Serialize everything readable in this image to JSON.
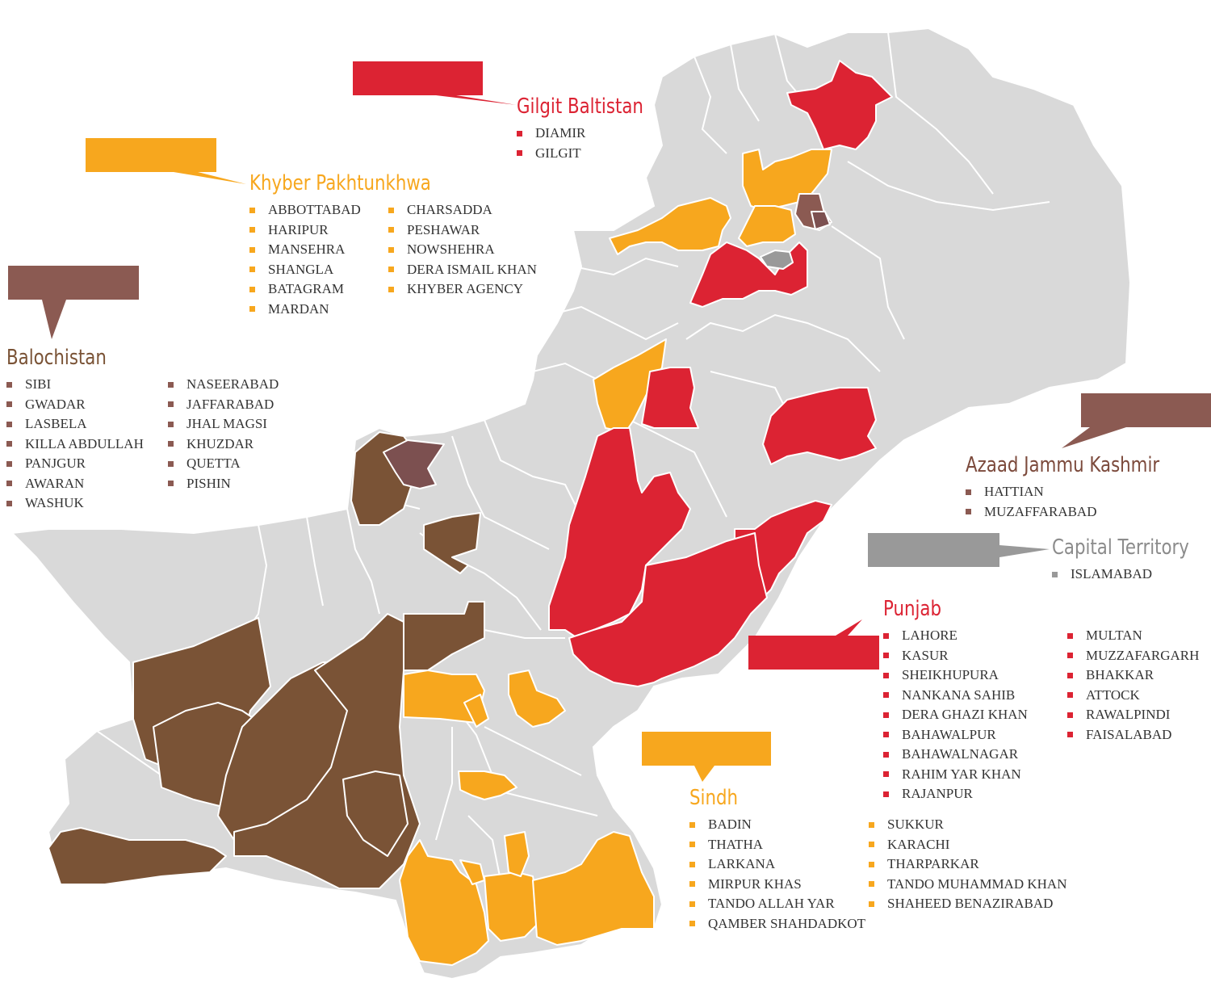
{
  "colors": {
    "default": "#d9d9d9",
    "gilgit_baltistan": "#dc2333",
    "khyber_pakhtunkhwa": "#f7a71e",
    "balochistan": "#7a5336",
    "balochistan_callout": "#8b5a52",
    "ajk": "#8b5a52",
    "capital": "#999999",
    "punjab": "#dc2333",
    "sindh": "#f7a71e"
  },
  "regions": {
    "gilgit_baltistan": {
      "title": "Gilgit Baltistan",
      "columns": [
        [
          "DIAMIR",
          "GILGIT"
        ]
      ]
    },
    "khyber_pakhtunkhwa": {
      "title": "Khyber Pakhtunkhwa",
      "columns": [
        [
          "ABBOTTABAD",
          "HARIPUR",
          "MANSEHRA",
          "SHANGLA",
          "BATAGRAM",
          "MARDAN"
        ],
        [
          "CHARSADDA",
          "PESHAWAR",
          "NOWSHEHRA",
          "DERA ISMAIL KHAN",
          "KHYBER AGENCY"
        ]
      ]
    },
    "balochistan": {
      "title": "Balochistan",
      "columns": [
        [
          "SIBI",
          "GWADAR",
          "LASBELA",
          "KILLA ABDULLAH",
          "PANJGUR",
          "AWARAN",
          "WASHUK"
        ],
        [
          "NASEERABAD",
          "JAFFARABAD",
          "JHAL MAGSI",
          "KHUZDAR",
          "QUETTA",
          "PISHIN"
        ]
      ]
    },
    "azaad_jammu_kashmir": {
      "title": "Azaad Jammu Kashmir",
      "columns": [
        [
          "HATTIAN",
          "MUZAFFARABAD"
        ]
      ]
    },
    "capital_territory": {
      "title": "Capital Territory",
      "columns": [
        [
          "ISLAMABAD"
        ]
      ]
    },
    "punjab": {
      "title": "Punjab",
      "columns": [
        [
          "LAHORE",
          "KASUR",
          "SHEIKHUPURA",
          "NANKANA SAHIB",
          "DERA GHAZI KHAN",
          "BAHAWALPUR",
          "BAHAWALNAGAR",
          "RAHIM YAR KHAN",
          "RAJANPUR"
        ],
        [
          "MULTAN",
          "MUZZAFARGARH",
          "BHAKKAR",
          "ATTOCK",
          "RAWALPINDI",
          "FAISALABAD"
        ]
      ]
    },
    "sindh": {
      "title": "Sindh",
      "columns": [
        [
          "BADIN",
          "THATHA",
          "LARKANA",
          "MIRPUR KHAS",
          "TANDO ALLAH YAR",
          "QAMBER SHAHDADKOT"
        ],
        [
          "SUKKUR",
          "KARACHI",
          "THARPARKAR",
          "TANDO MUHAMMAD KHAN",
          "SHAHEED BENAZIRABAD"
        ]
      ]
    }
  }
}
